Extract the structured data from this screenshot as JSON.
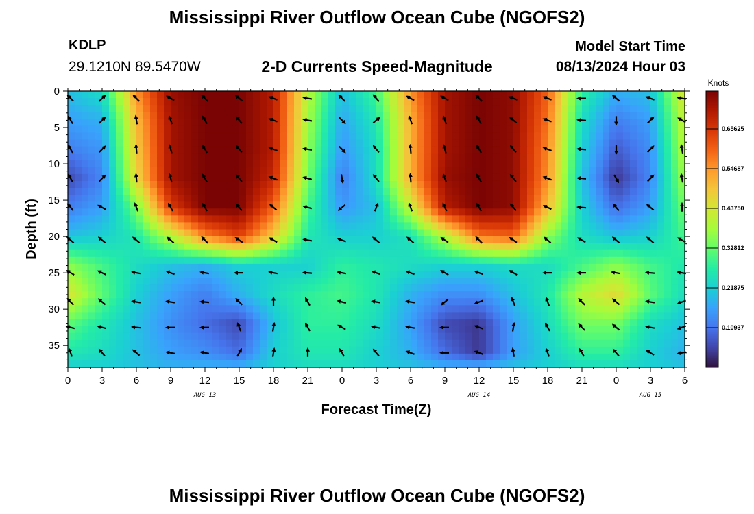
{
  "header": {
    "title": "Mississippi River Outflow Ocean Cube (NGOFS2)",
    "station_id": "KDLP",
    "station_coords": "29.1210N  89.5470W",
    "subtitle": "2-D Currents Speed-Magnitude",
    "model_start_label": "Model Start Time",
    "model_start_value": "08/13/2024 Hour 03"
  },
  "footer": {
    "title": "Mississippi River Outflow Ocean Cube (NGOFS2)"
  },
  "colors": {
    "palette": [
      "#30123b",
      "#4145ab",
      "#4675ed",
      "#39a2fc",
      "#1bcfd4",
      "#24eca6",
      "#61fc6c",
      "#a4fc3b",
      "#d1e834",
      "#f3c63a",
      "#fe9b2d",
      "#f36315",
      "#d93806",
      "#b11901",
      "#7a0403"
    ]
  },
  "chart_data": {
    "type": "heatmap",
    "title": "2-D Currents Speed-Magnitude",
    "xlabel": "Forecast Time(Z)",
    "ylabel": "Depth (ft)",
    "x_tick_labels": [
      "0",
      "3",
      "6",
      "9",
      "12",
      "15",
      "18",
      "21",
      "0",
      "3",
      "6",
      "9",
      "12",
      "15",
      "18",
      "21",
      "0",
      "3",
      "6"
    ],
    "date_labels": [
      {
        "label": "AUG 13",
        "hour": 12
      },
      {
        "label": "AUG 14",
        "hour": 36
      },
      {
        "label": "AUG 15",
        "hour": 51
      }
    ],
    "x_range_hours": [
      0,
      54
    ],
    "y_ticks": [
      0,
      5,
      10,
      15,
      20,
      25,
      30,
      35
    ],
    "y_range_ft": [
      0,
      38
    ],
    "colorbar": {
      "unit": "Knots",
      "range": [
        0,
        0.76
      ],
      "ticks": [
        0.10937,
        0.21875,
        0.32812,
        0.4375,
        0.54687,
        0.65625
      ],
      "tick_labels": [
        "0.10937",
        "0.21875",
        "0.32812",
        "0.43750",
        "0.54687",
        "0.65625"
      ]
    },
    "speed_grid": {
      "hours": [
        0,
        3,
        6,
        9,
        12,
        15,
        18,
        21,
        24,
        27,
        30,
        33,
        36,
        39,
        42,
        45,
        48,
        51,
        54
      ],
      "depths_ft": [
        0,
        4,
        8,
        12,
        16,
        20,
        24,
        28,
        32,
        36,
        38
      ],
      "values": [
        [
          0.2,
          0.24,
          0.55,
          0.73,
          0.76,
          0.76,
          0.7,
          0.4,
          0.2,
          0.3,
          0.55,
          0.72,
          0.76,
          0.74,
          0.6,
          0.28,
          0.18,
          0.2,
          0.45
        ],
        [
          0.16,
          0.18,
          0.5,
          0.72,
          0.76,
          0.76,
          0.7,
          0.38,
          0.17,
          0.26,
          0.52,
          0.72,
          0.76,
          0.74,
          0.58,
          0.24,
          0.12,
          0.16,
          0.42
        ],
        [
          0.12,
          0.15,
          0.48,
          0.72,
          0.76,
          0.76,
          0.7,
          0.36,
          0.15,
          0.24,
          0.52,
          0.72,
          0.76,
          0.74,
          0.56,
          0.22,
          0.08,
          0.14,
          0.4
        ],
        [
          0.06,
          0.13,
          0.46,
          0.72,
          0.76,
          0.76,
          0.68,
          0.34,
          0.12,
          0.24,
          0.52,
          0.73,
          0.76,
          0.74,
          0.55,
          0.2,
          0.04,
          0.13,
          0.38
        ],
        [
          0.12,
          0.16,
          0.34,
          0.65,
          0.76,
          0.76,
          0.6,
          0.3,
          0.15,
          0.2,
          0.42,
          0.7,
          0.76,
          0.74,
          0.5,
          0.22,
          0.1,
          0.16,
          0.34
        ],
        [
          0.2,
          0.22,
          0.26,
          0.4,
          0.56,
          0.64,
          0.48,
          0.26,
          0.22,
          0.22,
          0.25,
          0.4,
          0.58,
          0.6,
          0.36,
          0.24,
          0.2,
          0.22,
          0.3
        ],
        [
          0.36,
          0.3,
          0.24,
          0.2,
          0.18,
          0.22,
          0.22,
          0.22,
          0.28,
          0.26,
          0.24,
          0.22,
          0.22,
          0.24,
          0.24,
          0.3,
          0.36,
          0.3,
          0.26
        ],
        [
          0.44,
          0.32,
          0.22,
          0.16,
          0.12,
          0.18,
          0.24,
          0.28,
          0.3,
          0.26,
          0.18,
          0.14,
          0.14,
          0.2,
          0.26,
          0.4,
          0.46,
          0.32,
          0.24
        ],
        [
          0.32,
          0.26,
          0.2,
          0.14,
          0.1,
          0.06,
          0.2,
          0.28,
          0.28,
          0.24,
          0.16,
          0.06,
          0.04,
          0.16,
          0.24,
          0.34,
          0.34,
          0.24,
          0.2
        ],
        [
          0.26,
          0.24,
          0.2,
          0.16,
          0.14,
          0.1,
          0.22,
          0.26,
          0.26,
          0.22,
          0.18,
          0.1,
          0.04,
          0.16,
          0.22,
          0.28,
          0.28,
          0.22,
          0.18
        ],
        [
          0.22,
          0.22,
          0.2,
          0.18,
          0.18,
          0.18,
          0.22,
          0.24,
          0.24,
          0.22,
          0.2,
          0.18,
          0.18,
          0.2,
          0.22,
          0.24,
          0.24,
          0.22,
          0.2
        ]
      ]
    },
    "vector_grid": {
      "hours": [
        0,
        3,
        6,
        9,
        12,
        15,
        18,
        21,
        24,
        27,
        30,
        33,
        36,
        39,
        42,
        45,
        48,
        51,
        54
      ],
      "depths_ft": [
        1,
        4,
        8,
        12,
        16,
        20.5,
        25,
        29,
        32.5,
        36
      ],
      "directions_deg": [
        [
          135,
          45,
          135,
          150,
          135,
          140,
          160,
          170,
          135,
          130,
          150,
          150,
          135,
          160,
          160,
          180,
          140,
          160,
          170
        ],
        [
          120,
          45,
          100,
          110,
          120,
          130,
          160,
          170,
          315,
          40,
          110,
          110,
          120,
          140,
          160,
          175,
          270,
          45,
          150
        ],
        [
          120,
          45,
          95,
          105,
          120,
          130,
          160,
          170,
          315,
          130,
          95,
          105,
          120,
          130,
          160,
          175,
          270,
          45,
          100
        ],
        [
          120,
          45,
          95,
          105,
          120,
          130,
          160,
          165,
          280,
          130,
          95,
          110,
          120,
          130,
          160,
          175,
          300,
          45,
          100
        ],
        [
          130,
          150,
          110,
          120,
          120,
          130,
          140,
          165,
          220,
          70,
          110,
          115,
          120,
          130,
          155,
          175,
          130,
          140,
          90
        ],
        [
          140,
          140,
          140,
          140,
          135,
          145,
          150,
          170,
          160,
          140,
          140,
          145,
          135,
          145,
          140,
          150,
          140,
          140,
          150
        ],
        [
          150,
          155,
          170,
          160,
          170,
          180,
          170,
          175,
          170,
          160,
          160,
          150,
          160,
          150,
          180,
          180,
          170,
          175,
          170
        ],
        [
          135,
          140,
          170,
          170,
          175,
          135,
          90,
          120,
          165,
          170,
          170,
          220,
          200,
          110,
          110,
          135,
          140,
          170,
          200
        ],
        [
          165,
          165,
          175,
          180,
          180,
          110,
          80,
          120,
          150,
          170,
          170,
          180,
          160,
          80,
          120,
          135,
          140,
          170,
          200
        ],
        [
          110,
          130,
          140,
          170,
          170,
          60,
          80,
          90,
          120,
          130,
          160,
          180,
          160,
          100,
          110,
          120,
          130,
          150,
          190
        ]
      ]
    }
  }
}
